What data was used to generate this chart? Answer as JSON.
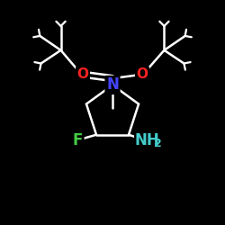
{
  "background_color": "#000000",
  "bond_color": "#FFFFFF",
  "atom_colors": {
    "N": "#4444FF",
    "O": "#FF2222",
    "F": "#44CC44",
    "NH2": "#44CCCC",
    "C": "#FFFFFF"
  },
  "title": "",
  "figsize": [
    2.5,
    2.5
  ],
  "dpi": 100
}
